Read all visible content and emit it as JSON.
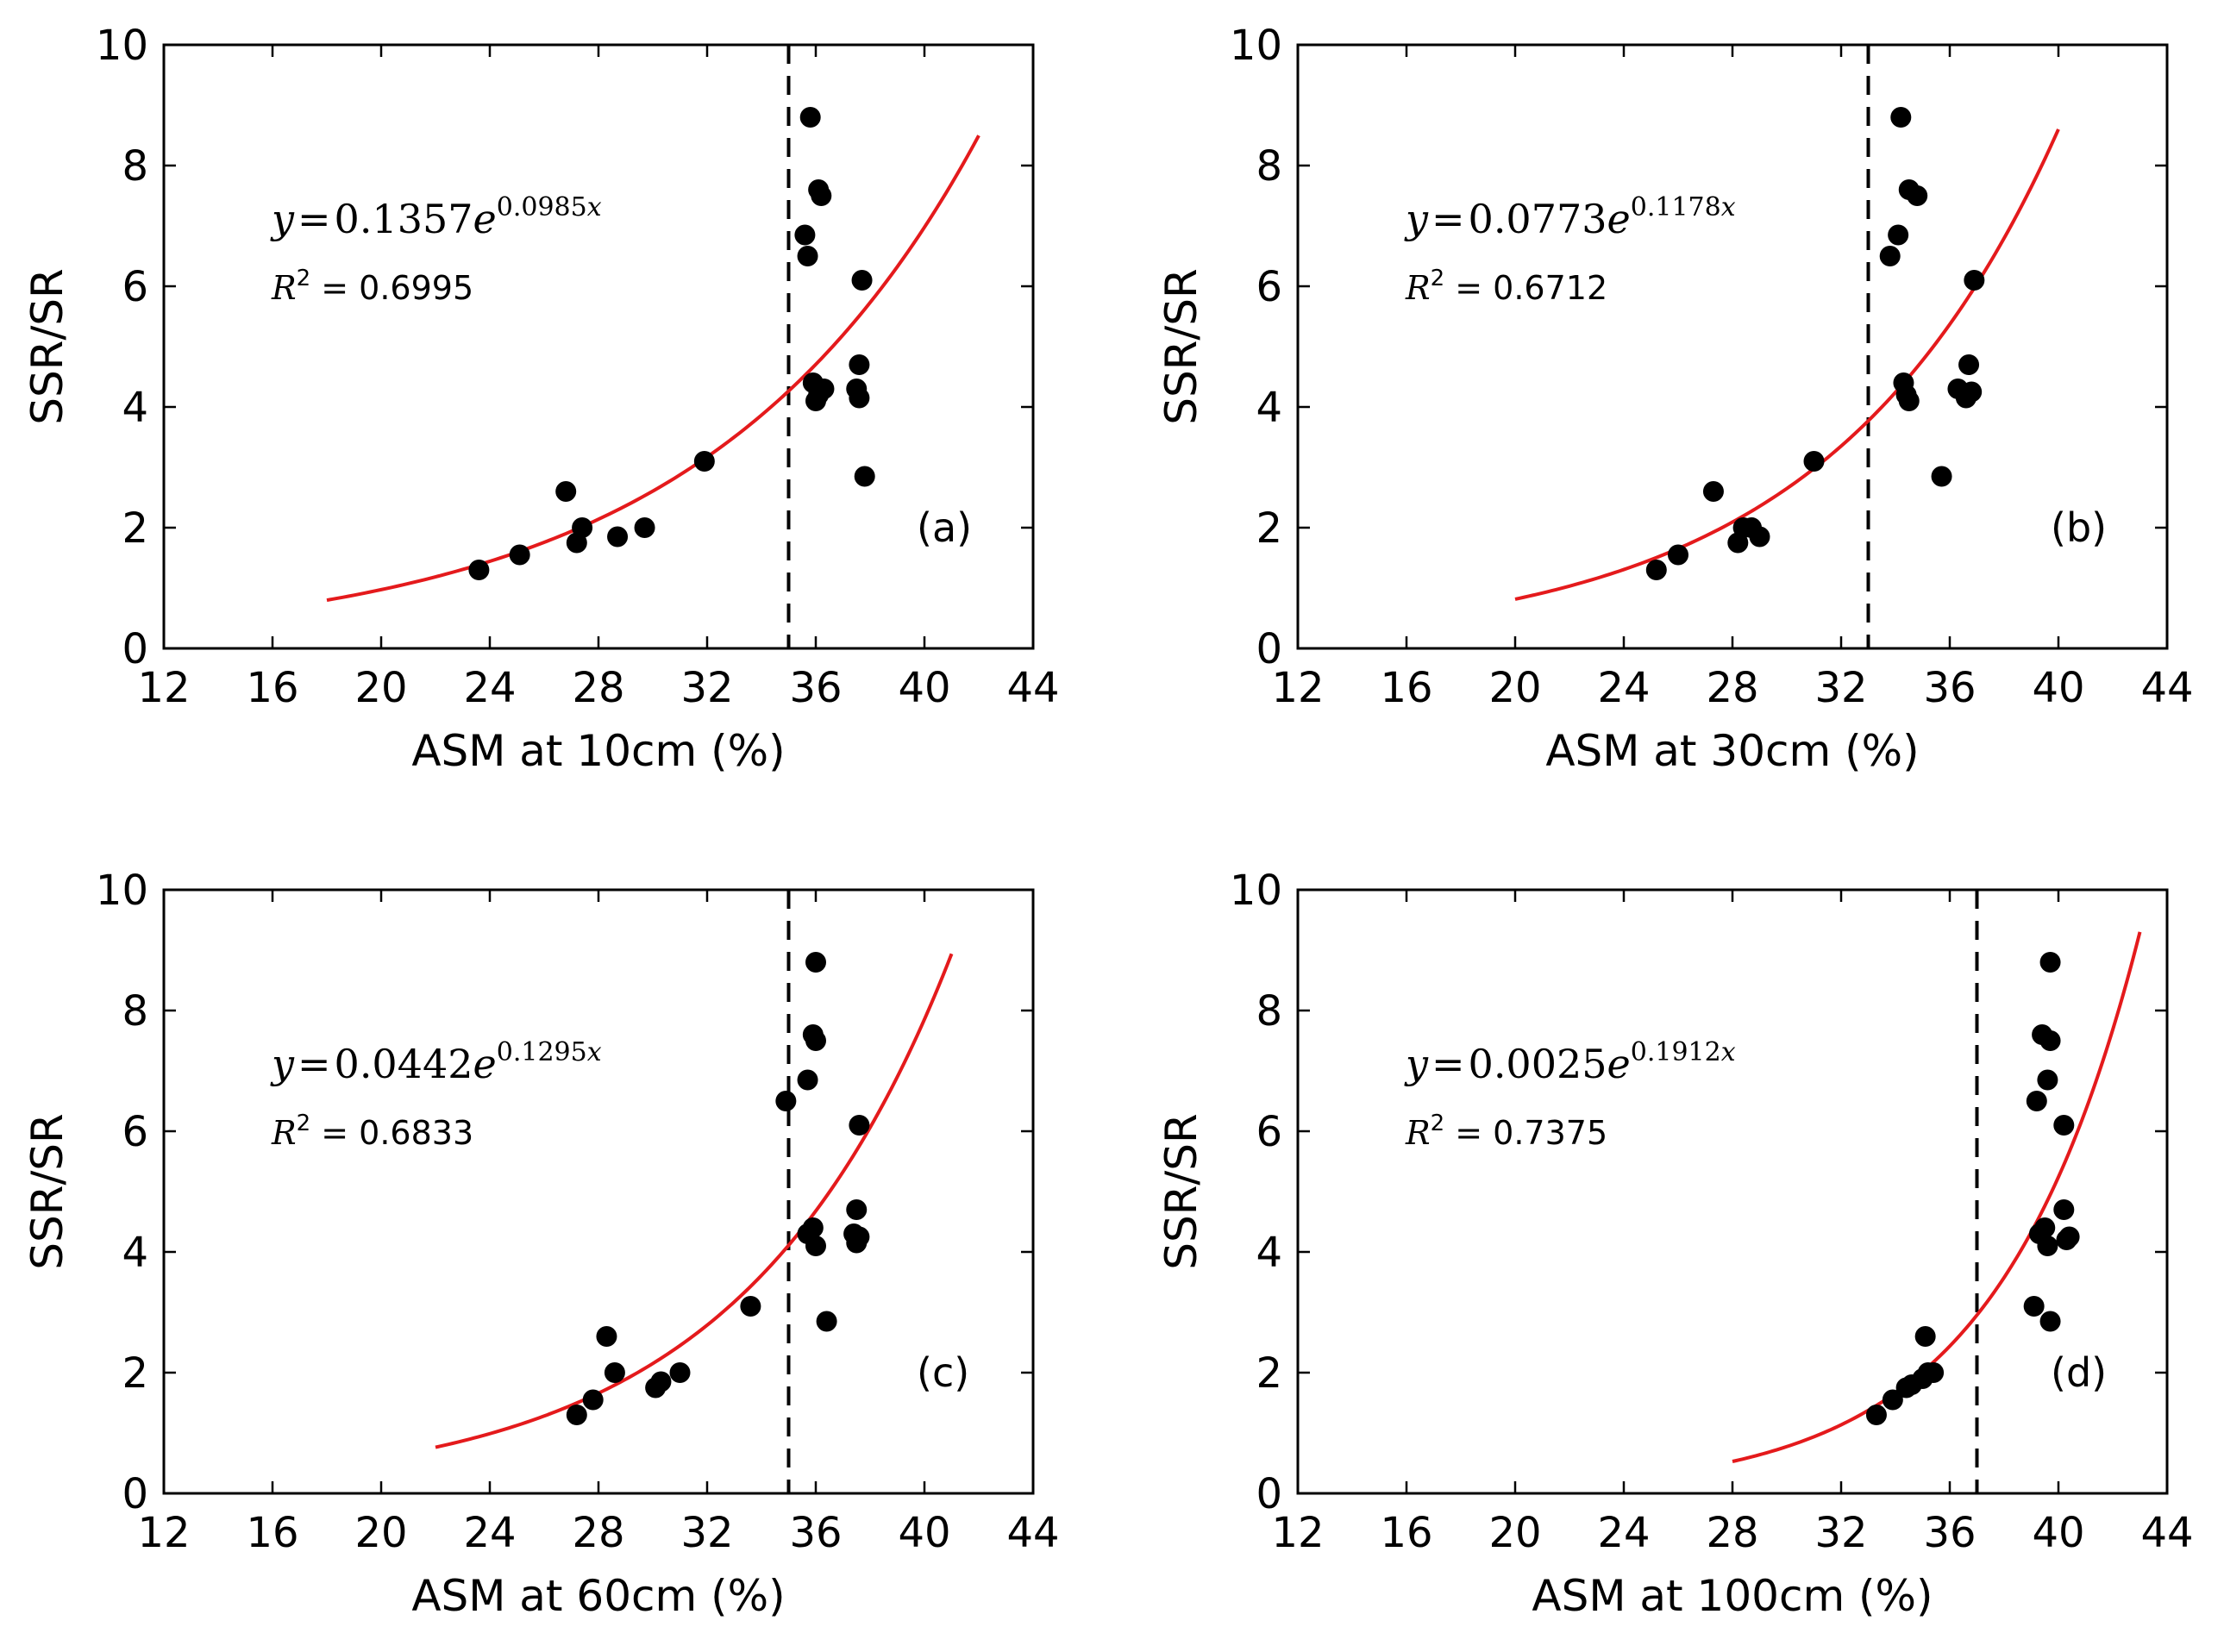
{
  "chart_data": [
    {
      "type": "scatter",
      "panel": "(a)",
      "xlabel": "ASM at 10cm (%)",
      "ylabel": "SSR/SR",
      "xlim": [
        12,
        44
      ],
      "ylim": [
        0,
        10
      ],
      "xticks": [
        12,
        16,
        20,
        24,
        28,
        32,
        36,
        40,
        44
      ],
      "yticks": [
        0,
        2,
        4,
        6,
        8,
        10
      ],
      "threshold_x": 35,
      "fit": {
        "a": 0.1357,
        "b": 0.0985,
        "x_range": [
          18,
          42
        ],
        "color": "#e41a1c"
      },
      "equation": {
        "y": "y",
        "eq": "=",
        "coef": "0.1357",
        "e": "e",
        "exp": "0.0985",
        "x": "x"
      },
      "r2_label": "R",
      "r2_sup": "2",
      "r2_value": " = 0.6995",
      "points": [
        [
          23.6,
          1.3
        ],
        [
          25.1,
          1.55
        ],
        [
          26.8,
          2.6
        ],
        [
          27.2,
          1.75
        ],
        [
          27.4,
          2.0
        ],
        [
          28.7,
          1.85
        ],
        [
          29.7,
          2.0
        ],
        [
          31.9,
          3.1
        ],
        [
          35.6,
          6.85
        ],
        [
          35.7,
          6.5
        ],
        [
          35.8,
          8.8
        ],
        [
          35.9,
          4.4
        ],
        [
          36.0,
          4.1
        ],
        [
          36.1,
          4.2
        ],
        [
          36.1,
          7.6
        ],
        [
          36.2,
          7.5
        ],
        [
          36.3,
          4.3
        ],
        [
          37.5,
          4.3
        ],
        [
          37.6,
          4.15
        ],
        [
          37.6,
          4.7
        ],
        [
          37.7,
          6.1
        ],
        [
          37.8,
          2.85
        ]
      ]
    },
    {
      "type": "scatter",
      "panel": "(b)",
      "xlabel": "ASM at 30cm (%)",
      "ylabel": "SSR/SR",
      "xlim": [
        12,
        44
      ],
      "ylim": [
        0,
        10
      ],
      "xticks": [
        12,
        16,
        20,
        24,
        28,
        32,
        36,
        40,
        44
      ],
      "yticks": [
        0,
        2,
        4,
        6,
        8,
        10
      ],
      "threshold_x": 33,
      "fit": {
        "a": 0.0773,
        "b": 0.1178,
        "x_range": [
          20,
          40
        ],
        "color": "#e41a1c"
      },
      "equation": {
        "y": "y",
        "eq": "=",
        "coef": "0.0773",
        "e": "e",
        "exp": "0.1178",
        "x": "x"
      },
      "r2_label": "R",
      "r2_sup": "2",
      "r2_value": " = 0.6712",
      "points": [
        [
          25.2,
          1.3
        ],
        [
          26.0,
          1.55
        ],
        [
          27.3,
          2.6
        ],
        [
          28.2,
          1.75
        ],
        [
          28.4,
          2.0
        ],
        [
          28.7,
          2.0
        ],
        [
          29.0,
          1.85
        ],
        [
          31.0,
          3.1
        ],
        [
          33.8,
          6.5
        ],
        [
          34.1,
          6.85
        ],
        [
          34.2,
          8.8
        ],
        [
          34.3,
          4.4
        ],
        [
          34.4,
          4.2
        ],
        [
          34.5,
          4.1
        ],
        [
          34.5,
          7.6
        ],
        [
          34.8,
          7.5
        ],
        [
          35.7,
          2.85
        ],
        [
          36.3,
          4.3
        ],
        [
          36.6,
          4.15
        ],
        [
          36.7,
          4.7
        ],
        [
          36.8,
          4.25
        ],
        [
          36.9,
          6.1
        ]
      ]
    },
    {
      "type": "scatter",
      "panel": "(c)",
      "xlabel": "ASM at 60cm (%)",
      "ylabel": "SSR/SR",
      "xlim": [
        12,
        44
      ],
      "ylim": [
        0,
        10
      ],
      "xticks": [
        12,
        16,
        20,
        24,
        28,
        32,
        36,
        40,
        44
      ],
      "yticks": [
        0,
        2,
        4,
        6,
        8,
        10
      ],
      "threshold_x": 35,
      "fit": {
        "a": 0.0442,
        "b": 0.1295,
        "x_range": [
          22,
          41
        ],
        "color": "#e41a1c"
      },
      "equation": {
        "y": "y",
        "eq": "=",
        "coef": "0.0442",
        "e": "e",
        "exp": "0.1295",
        "x": "x"
      },
      "r2_label": "R",
      "r2_sup": "2",
      "r2_value": " = 0.6833",
      "points": [
        [
          27.2,
          1.3
        ],
        [
          27.8,
          1.55
        ],
        [
          28.3,
          2.6
        ],
        [
          28.6,
          2.0
        ],
        [
          30.1,
          1.75
        ],
        [
          30.3,
          1.85
        ],
        [
          31.0,
          2.0
        ],
        [
          33.6,
          3.1
        ],
        [
          34.9,
          6.5
        ],
        [
          35.7,
          6.85
        ],
        [
          35.7,
          4.3
        ],
        [
          35.9,
          7.6
        ],
        [
          35.9,
          4.4
        ],
        [
          36.0,
          8.8
        ],
        [
          36.0,
          4.1
        ],
        [
          36.0,
          7.5
        ],
        [
          36.4,
          2.85
        ],
        [
          37.4,
          4.3
        ],
        [
          37.5,
          4.7
        ],
        [
          37.5,
          4.15
        ],
        [
          37.6,
          4.25
        ],
        [
          37.6,
          6.1
        ]
      ]
    },
    {
      "type": "scatter",
      "panel": "(d)",
      "xlabel": "ASM at 100cm (%)",
      "ylabel": "SSR/SR",
      "xlim": [
        12,
        44
      ],
      "ylim": [
        0,
        10
      ],
      "xticks": [
        12,
        16,
        20,
        24,
        28,
        32,
        36,
        40,
        44
      ],
      "yticks": [
        0,
        2,
        4,
        6,
        8,
        10
      ],
      "threshold_x": 37,
      "fit": {
        "a": 0.0025,
        "b": 0.1912,
        "x_range": [
          28,
          43
        ],
        "color": "#e41a1c"
      },
      "equation": {
        "y": "y",
        "eq": "=",
        "coef": "0.0025",
        "e": "e",
        "exp": "0.1912",
        "x": "x"
      },
      "r2_label": "R",
      "r2_sup": "2",
      "r2_value": " = 0.7375",
      "points": [
        [
          33.3,
          1.3
        ],
        [
          33.9,
          1.55
        ],
        [
          34.4,
          1.75
        ],
        [
          34.6,
          1.8
        ],
        [
          35.0,
          1.9
        ],
        [
          35.1,
          2.6
        ],
        [
          35.2,
          2.0
        ],
        [
          35.4,
          2.0
        ],
        [
          39.1,
          3.1
        ],
        [
          39.2,
          6.5
        ],
        [
          39.3,
          4.3
        ],
        [
          39.4,
          7.6
        ],
        [
          39.5,
          4.4
        ],
        [
          39.6,
          6.85
        ],
        [
          39.6,
          4.1
        ],
        [
          39.7,
          8.8
        ],
        [
          39.7,
          7.5
        ],
        [
          39.7,
          2.85
        ],
        [
          40.2,
          6.1
        ],
        [
          40.2,
          4.7
        ],
        [
          40.3,
          4.2
        ],
        [
          40.4,
          4.25
        ]
      ]
    }
  ]
}
